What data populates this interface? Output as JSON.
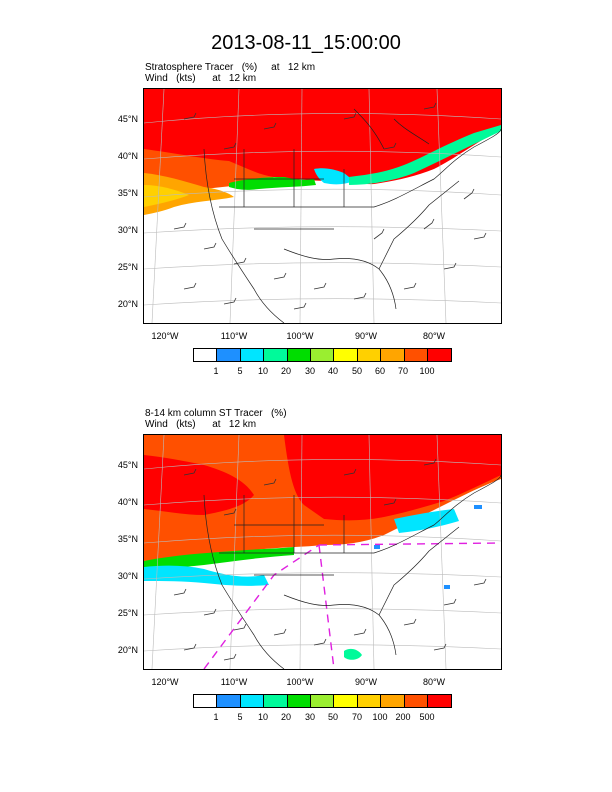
{
  "title": "2013-08-11_15:00:00",
  "colors": [
    "#ffffff",
    "#1e90ff",
    "#00e5ff",
    "#00fa9a",
    "#00dd00",
    "#9aee30",
    "#ffff00",
    "#ffd000",
    "#ffa500",
    "#ff5000",
    "#ff0000"
  ],
  "panels": [
    {
      "line1": "Stratosphere Tracer   (%)     at   12 km",
      "line2": "Wind   (kts)      at   12 km",
      "lat_labels": [
        "45°N",
        "40°N",
        "35°N",
        "30°N",
        "25°N",
        "20°N"
      ],
      "lon_labels": [
        "120°W",
        "110°W",
        "100°W",
        "90°W",
        "80°W"
      ],
      "colorbar_labels": [
        "1",
        "5",
        "10",
        "20",
        "30",
        "40",
        "50",
        "60",
        "70",
        "100"
      ]
    },
    {
      "line1": "8-14 km column ST Tracer   (%)",
      "line2": "Wind   (kts)      at   12 km",
      "lat_labels": [
        "45°N",
        "40°N",
        "35°N",
        "30°N",
        "25°N",
        "20°N"
      ],
      "lon_labels": [
        "120°W",
        "110°W",
        "100°W",
        "90°W",
        "80°W"
      ],
      "colorbar_labels": [
        "1",
        "5",
        "10",
        "20",
        "30",
        "50",
        "70",
        "100",
        "200",
        "500"
      ]
    }
  ]
}
